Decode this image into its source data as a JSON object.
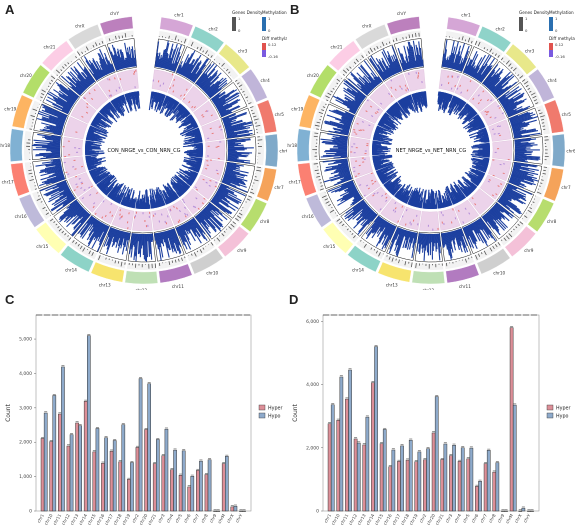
{
  "panels": {
    "a": {
      "letter": "A",
      "center_label": "CON_NRGE_vs_CON_NRN_CG"
    },
    "b": {
      "letter": "B",
      "center_label": "NET_NRGE_vs_NET_NRN_CG"
    },
    "c": {
      "letter": "C"
    },
    "d": {
      "letter": "D"
    }
  },
  "circos_legend": {
    "gene_density": {
      "title": "Genes Density",
      "ticks": [
        "1",
        "0"
      ]
    },
    "methylation": {
      "title": "Methylation",
      "ticks": [
        "1",
        "0"
      ]
    },
    "diff_methylation": {
      "title": "Diff methylation",
      "ticks": [
        "0.12",
        "-0.16"
      ]
    }
  },
  "chromosomes": [
    "chr1",
    "chr2",
    "chr3",
    "chr4",
    "chr5",
    "chr6",
    "chr7",
    "chr8",
    "chr9",
    "chr10",
    "chr11",
    "chr12",
    "chr13",
    "chr14",
    "chr15",
    "chr16",
    "chr17",
    "chr18",
    "chr19",
    "chr20",
    "chr21",
    "chrX",
    "chrY"
  ],
  "chromosome_colors": [
    "#d5a6d6",
    "#8fd3c9",
    "#e8e88a",
    "#c0b5d9",
    "#f07a6d",
    "#7fa9c9",
    "#f5a35a",
    "#b7dd6e",
    "#f4c1d8",
    "#cfcfcf",
    "#b27bc0",
    "#bfe0b5",
    "#f7e46e",
    "#8dd3c7",
    "#ffffb3",
    "#bebada",
    "#fb8072",
    "#80b1d3",
    "#fdb462",
    "#b3de69",
    "#fccde5",
    "#d9d9d9",
    "#bc80bd"
  ],
  "colors": {
    "hyper": "#dd8f98",
    "hypo": "#8eaacb",
    "methylation_bar": "#1c3f9f",
    "diff_band": "#ecd3ea"
  },
  "chart_data": [
    {
      "type": "bar",
      "categories": [
        "chr1",
        "chr10",
        "chr11",
        "chr12",
        "chr13",
        "chr14",
        "chr15",
        "chr16",
        "chr17",
        "chr18",
        "chr19",
        "chr2",
        "chr20",
        "chr21",
        "chr3",
        "chr4",
        "chr5",
        "chr6",
        "chr7",
        "chr8",
        "chr9",
        "chrM",
        "chrX",
        "chrY"
      ],
      "series": [
        {
          "name": "Hyper",
          "values": [
            2110,
            2020,
            2820,
            1890,
            2560,
            3190,
            1720,
            1390,
            1740,
            1430,
            920,
            1850,
            2370,
            1380,
            1610,
            1200,
            1040,
            700,
            1180,
            1060,
            0,
            1380,
            120,
            0
          ]
        },
        {
          "name": "Hypo",
          "values": [
            2850,
            3360,
            4190,
            2220,
            2480,
            5100,
            2400,
            2130,
            2050,
            2510,
            1410,
            3850,
            3700,
            2080,
            2380,
            1770,
            1750,
            1010,
            1450,
            1490,
            0,
            1590,
            140,
            0
          ]
        }
      ],
      "ylim": [
        0,
        5700
      ],
      "yticks": [
        "0",
        "1,000",
        "2,000",
        "3,000",
        "4,000",
        "5,000"
      ],
      "ylabel": "Count",
      "legend": [
        "Hyper",
        "Hypo"
      ],
      "legend_position": "right"
    },
    {
      "type": "bar",
      "categories": [
        "chr1",
        "chr10",
        "chr11",
        "chr12",
        "chr13",
        "chr14",
        "chr15",
        "chr16",
        "chr17",
        "chr18",
        "chr19",
        "chr2",
        "chr20",
        "chr21",
        "chr3",
        "chr4",
        "chr5",
        "chr6",
        "chr7",
        "chr8",
        "chr9",
        "chrM",
        "chrX",
        "chrY"
      ],
      "series": [
        {
          "name": "Hyper",
          "values": [
            2760,
            2870,
            3540,
            2280,
            2090,
            4060,
            2130,
            1400,
            1570,
            1610,
            1560,
            1620,
            2470,
            1630,
            1750,
            1570,
            1650,
            780,
            1500,
            1230,
            0,
            5800,
            0,
            0
          ]
        },
        {
          "name": "Hypo",
          "values": [
            3360,
            4240,
            4460,
            2150,
            2970,
            5200,
            2580,
            1930,
            2060,
            2240,
            1870,
            1970,
            3620,
            2120,
            2080,
            2000,
            1990,
            940,
            1920,
            1530,
            0,
            3350,
            90,
            0
          ]
        }
      ],
      "ylim": [
        0,
        6200
      ],
      "yticks": [
        "0",
        "2,000",
        "4,000",
        "6,000"
      ],
      "ylabel": "Count",
      "legend": [
        "Hyper",
        "Hypo"
      ],
      "legend_position": "right"
    }
  ]
}
